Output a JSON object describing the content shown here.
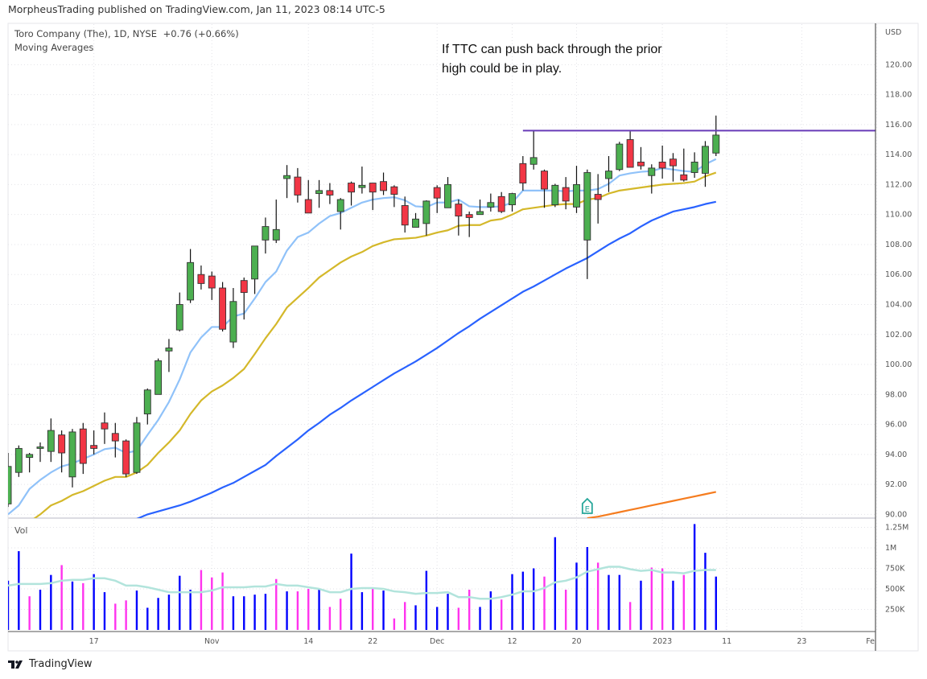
{
  "header": {
    "published": "MorpheusTrading published on TradingView.com, Jan 11, 2023 08:14 UTC-5",
    "symbol_line": "Toro Company (The), 1D, NYSE",
    "change": "+0.76 (+0.66%)",
    "indicator": "Moving Averages",
    "currency": "USD",
    "volume_label": "Vol"
  },
  "annotation": {
    "text_line1": "If TTC can push back through the prior",
    "text_line2": "high could be in play.",
    "horizontal_line_price": 115.6,
    "horizontal_line_from": "2022-12-13",
    "line_color": "#673ab7"
  },
  "earnings_marker": {
    "label": "E",
    "date": "2022-12-21",
    "color": "#26a69a"
  },
  "footer": {
    "brand": "TradingView"
  },
  "colors": {
    "up": "#4caf50",
    "down": "#f23645",
    "vol_up": "#0000ff",
    "vol_down": "#ff33ee",
    "ma_fast": "#90c2f9",
    "ma_mid": "#d4b82a",
    "ma_slow": "#2962ff",
    "ma_long": "#f57c1f",
    "vol_ma": "#b2e4dc"
  },
  "chart_data": {
    "type": "candlestick",
    "title": "",
    "ylim": [
      89.7,
      122.7
    ],
    "y_ticks": [
      "90.00",
      "92.00",
      "94.00",
      "96.00",
      "98.00",
      "100.00",
      "102.00",
      "104.00",
      "106.00",
      "108.00",
      "110.00",
      "112.00",
      "114.00",
      "116.00",
      "118.00",
      "120.00"
    ],
    "x_ticks": [
      {
        "label": "17",
        "date": "2022-10-17"
      },
      {
        "label": "Nov",
        "date": "2022-11-01"
      },
      {
        "label": "14",
        "date": "2022-11-14"
      },
      {
        "label": "22",
        "date": "2022-11-22"
      },
      {
        "label": "Dec",
        "date": "2022-12-01"
      },
      {
        "label": "12",
        "date": "2022-12-12"
      },
      {
        "label": "20",
        "date": "2022-12-20"
      },
      {
        "label": "2023",
        "date": "2023-01-03"
      },
      {
        "label": "11",
        "date": "2023-01-11"
      },
      {
        "label": "23",
        "date": "2023-01-23"
      },
      {
        "label": "Fe",
        "date": "2023-02-01"
      }
    ],
    "grid": true,
    "dates": [
      "2022-10-05",
      "2022-10-06",
      "2022-10-07",
      "2022-10-10",
      "2022-10-11",
      "2022-10-12",
      "2022-10-13",
      "2022-10-14",
      "2022-10-17",
      "2022-10-18",
      "2022-10-19",
      "2022-10-20",
      "2022-10-21",
      "2022-10-24",
      "2022-10-25",
      "2022-10-26",
      "2022-10-27",
      "2022-10-28",
      "2022-10-31",
      "2022-11-01",
      "2022-11-02",
      "2022-11-03",
      "2022-11-04",
      "2022-11-07",
      "2022-11-08",
      "2022-11-09",
      "2022-11-10",
      "2022-11-11",
      "2022-11-14",
      "2022-11-15",
      "2022-11-16",
      "2022-11-17",
      "2022-11-18",
      "2022-11-21",
      "2022-11-22",
      "2022-11-23",
      "2022-11-25",
      "2022-11-28",
      "2022-11-29",
      "2022-11-30",
      "2022-12-01",
      "2022-12-02",
      "2022-12-05",
      "2022-12-06",
      "2022-12-07",
      "2022-12-08",
      "2022-12-09",
      "2022-12-12",
      "2022-12-13",
      "2022-12-14",
      "2022-12-15",
      "2022-12-16",
      "2022-12-19",
      "2022-12-20",
      "2022-12-21",
      "2022-12-22",
      "2022-12-23",
      "2022-12-27",
      "2022-12-28",
      "2022-12-29",
      "2022-12-30",
      "2023-01-03",
      "2023-01-04",
      "2023-01-05",
      "2023-01-06",
      "2023-01-09",
      "2023-01-10"
    ],
    "ohlc": [
      [
        90.7,
        94.1,
        90.5,
        93.2
      ],
      [
        92.8,
        94.6,
        92.5,
        94.4
      ],
      [
        93.8,
        94.1,
        92.8,
        94.0
      ],
      [
        94.4,
        94.8,
        93.5,
        94.5
      ],
      [
        94.2,
        96.4,
        93.5,
        95.6
      ],
      [
        95.3,
        95.6,
        92.8,
        94.1
      ],
      [
        92.5,
        95.7,
        91.8,
        95.5
      ],
      [
        95.7,
        96.1,
        92.7,
        93.4
      ],
      [
        94.6,
        95.6,
        94.0,
        94.4
      ],
      [
        96.1,
        96.8,
        94.7,
        95.7
      ],
      [
        95.4,
        96.1,
        93.8,
        94.9
      ],
      [
        94.9,
        95.0,
        92.5,
        92.7
      ],
      [
        92.8,
        96.5,
        92.7,
        96.1
      ],
      [
        96.7,
        98.4,
        96.0,
        98.3
      ],
      [
        98.0,
        100.4,
        98.0,
        100.25
      ],
      [
        100.9,
        101.7,
        99.5,
        101.1
      ],
      [
        102.3,
        104.8,
        102.2,
        104.0
      ],
      [
        104.3,
        107.7,
        104.1,
        106.8
      ],
      [
        106.0,
        106.6,
        105.0,
        105.4
      ],
      [
        105.9,
        106.2,
        104.3,
        105.1
      ],
      [
        105.1,
        105.5,
        102.2,
        102.35
      ],
      [
        101.5,
        105.1,
        101.1,
        104.2
      ],
      [
        105.6,
        105.8,
        103.0,
        104.8
      ],
      [
        105.7,
        107.9,
        104.7,
        107.9
      ],
      [
        108.3,
        109.8,
        107.4,
        109.2
      ],
      [
        108.3,
        111.0,
        108.1,
        109.0
      ],
      [
        112.4,
        113.3,
        111.1,
        112.6
      ],
      [
        112.5,
        113.1,
        110.8,
        111.3
      ],
      [
        111.0,
        112.3,
        110.1,
        110.1
      ],
      [
        111.4,
        112.3,
        110.45,
        111.6
      ],
      [
        111.6,
        112.1,
        110.7,
        111.3
      ],
      [
        110.2,
        111.1,
        109.0,
        111.0
      ],
      [
        112.1,
        112.2,
        110.6,
        111.5
      ],
      [
        111.8,
        113.2,
        111.4,
        111.95
      ],
      [
        112.1,
        112.1,
        110.3,
        111.5
      ],
      [
        112.2,
        112.8,
        111.3,
        111.6
      ],
      [
        111.85,
        111.95,
        110.5,
        111.35
      ],
      [
        110.6,
        111.2,
        108.8,
        109.3
      ],
      [
        109.15,
        110.1,
        109.15,
        109.7
      ],
      [
        109.4,
        110.95,
        108.6,
        110.9
      ],
      [
        111.8,
        111.95,
        110.1,
        111.1
      ],
      [
        110.45,
        112.5,
        110.45,
        112.0
      ],
      [
        110.7,
        111.0,
        108.6,
        109.9
      ],
      [
        110.0,
        110.2,
        108.5,
        109.8
      ],
      [
        110.0,
        111.0,
        110.0,
        110.2
      ],
      [
        110.5,
        111.4,
        110.2,
        110.8
      ],
      [
        111.2,
        111.5,
        110.1,
        110.2
      ],
      [
        110.65,
        111.45,
        110.2,
        111.4
      ],
      [
        113.4,
        113.9,
        111.6,
        112.1
      ],
      [
        113.35,
        115.6,
        113.0,
        113.8
      ],
      [
        112.9,
        113.0,
        110.45,
        111.7
      ],
      [
        110.65,
        112.05,
        110.5,
        111.95
      ],
      [
        111.8,
        112.5,
        110.35,
        110.9
      ],
      [
        110.5,
        113.25,
        110.1,
        112.0
      ],
      [
        108.3,
        113.0,
        105.7,
        112.8
      ],
      [
        111.35,
        112.7,
        109.4,
        111.0
      ],
      [
        112.4,
        113.9,
        111.5,
        112.9
      ],
      [
        113.0,
        114.85,
        112.9,
        114.7
      ],
      [
        115.0,
        115.55,
        113.15,
        113.15
      ],
      [
        113.5,
        114.5,
        113.0,
        113.25
      ],
      [
        112.6,
        113.35,
        111.4,
        113.1
      ],
      [
        113.5,
        114.6,
        112.4,
        113.1
      ],
      [
        113.7,
        114.1,
        112.2,
        113.25
      ],
      [
        112.65,
        114.4,
        112.2,
        112.3
      ],
      [
        112.8,
        114.15,
        112.45,
        113.5
      ],
      [
        112.75,
        114.9,
        111.85,
        114.55
      ],
      [
        114.1,
        116.6,
        113.9,
        115.3
      ]
    ],
    "ma_fast": [
      90.0,
      90.6,
      91.7,
      92.3,
      92.8,
      93.2,
      93.4,
      93.7,
      94.0,
      94.35,
      94.45,
      94.1,
      94.25,
      95.3,
      96.3,
      97.5,
      99.0,
      100.8,
      101.8,
      102.5,
      102.5,
      103.2,
      103.4,
      104.4,
      105.5,
      106.2,
      107.6,
      108.5,
      108.8,
      109.4,
      109.9,
      110.1,
      110.45,
      110.8,
      111.0,
      111.1,
      111.15,
      110.95,
      110.55,
      110.5,
      110.8,
      110.8,
      111.0,
      110.55,
      110.5,
      110.5,
      110.55,
      110.8,
      111.6,
      111.6,
      111.6,
      111.6,
      111.55,
      111.6,
      111.6,
      111.7,
      112.05,
      112.6,
      112.75,
      112.85,
      112.9,
      113.1,
      113.0,
      112.9,
      112.85,
      113.35,
      113.7
    ],
    "ma_mid": [
      null,
      null,
      89.5,
      90.0,
      90.6,
      90.9,
      91.3,
      91.55,
      91.9,
      92.25,
      92.5,
      92.5,
      92.8,
      93.3,
      94.1,
      94.8,
      95.6,
      96.7,
      97.6,
      98.2,
      98.6,
      99.1,
      99.7,
      100.7,
      101.75,
      102.7,
      103.8,
      104.45,
      105.1,
      105.8,
      106.3,
      106.8,
      107.2,
      107.5,
      107.9,
      108.15,
      108.35,
      108.4,
      108.45,
      108.6,
      108.8,
      108.95,
      109.25,
      109.3,
      109.3,
      109.6,
      109.7,
      110.0,
      110.35,
      110.45,
      110.55,
      110.65,
      110.7,
      110.7,
      111.0,
      111.1,
      111.4,
      111.6,
      111.7,
      111.8,
      111.9,
      112.0,
      112.05,
      112.1,
      112.2,
      112.55,
      112.8
    ],
    "ma_slow": [
      null,
      null,
      null,
      null,
      null,
      null,
      null,
      null,
      null,
      null,
      null,
      null,
      89.7,
      90.0,
      90.2,
      90.4,
      90.6,
      90.85,
      91.15,
      91.45,
      91.8,
      92.1,
      92.5,
      92.9,
      93.3,
      93.9,
      94.45,
      95.0,
      95.6,
      96.1,
      96.65,
      97.1,
      97.6,
      98.05,
      98.5,
      98.95,
      99.4,
      99.8,
      100.2,
      100.65,
      101.1,
      101.6,
      102.1,
      102.55,
      103.05,
      103.5,
      103.95,
      104.4,
      104.85,
      105.2,
      105.6,
      106.0,
      106.4,
      106.75,
      107.1,
      107.55,
      108.0,
      108.4,
      108.75,
      109.2,
      109.6,
      109.9,
      110.2,
      110.35,
      110.5,
      110.7,
      110.85
    ],
    "ma_long": [
      null,
      null,
      null,
      null,
      null,
      null,
      null,
      null,
      null,
      null,
      null,
      null,
      null,
      null,
      null,
      null,
      null,
      null,
      null,
      null,
      null,
      null,
      null,
      null,
      null,
      null,
      null,
      null,
      null,
      null,
      null,
      null,
      null,
      null,
      null,
      null,
      null,
      null,
      null,
      null,
      null,
      null,
      null,
      null,
      null,
      null,
      null,
      null,
      null,
      null,
      null,
      null,
      null,
      null,
      89.75,
      89.85,
      90.0,
      90.15,
      90.3,
      90.45,
      90.6,
      90.75,
      90.9,
      91.05,
      91.2,
      91.35,
      91.5
    ],
    "volume": {
      "unit": "M",
      "vlim": [
        0,
        1.353
      ],
      "ticks": [
        {
          "label": "250K",
          "value": 0.25
        },
        {
          "label": "500K",
          "value": 0.5
        },
        {
          "label": "750K",
          "value": 0.75
        },
        {
          "label": "1M",
          "value": 1.0
        },
        {
          "label": "1.25M",
          "value": 1.25
        }
      ],
      "values": [
        0.6,
        0.96,
        0.41,
        0.49,
        0.67,
        0.79,
        0.59,
        0.57,
        0.68,
        0.46,
        0.32,
        0.36,
        0.48,
        0.27,
        0.39,
        0.43,
        0.66,
        0.49,
        0.73,
        0.64,
        0.7,
        0.41,
        0.41,
        0.43,
        0.44,
        0.62,
        0.47,
        0.47,
        0.5,
        0.5,
        0.28,
        0.38,
        0.93,
        0.46,
        0.5,
        0.48,
        0.14,
        0.34,
        0.3,
        0.72,
        0.28,
        0.44,
        0.27,
        0.49,
        0.28,
        0.47,
        0.37,
        0.68,
        0.71,
        0.75,
        0.65,
        1.13,
        0.49,
        0.82,
        1.01,
        0.82,
        0.67,
        0.67,
        0.34,
        0.6,
        0.76,
        0.75,
        0.6,
        0.67,
        1.29,
        0.94,
        0.65
      ],
      "up": [
        1,
        1,
        0,
        1,
        1,
        0,
        1,
        0,
        1,
        1,
        0,
        0,
        1,
        1,
        1,
        1,
        1,
        1,
        0,
        0,
        0,
        1,
        1,
        1,
        1,
        0,
        1,
        0,
        0,
        1,
        0,
        0,
        1,
        1,
        0,
        1,
        0,
        0,
        1,
        1,
        1,
        1,
        0,
        0,
        1,
        1,
        0,
        1,
        1,
        1,
        0,
        1,
        0,
        1,
        1,
        0,
        1,
        1,
        0,
        1,
        0,
        0,
        1,
        0,
        1,
        1,
        1
      ],
      "ma": [
        0.54,
        0.56,
        0.56,
        0.56,
        0.57,
        0.6,
        0.61,
        0.61,
        0.63,
        0.63,
        0.6,
        0.54,
        0.54,
        0.52,
        0.49,
        0.46,
        0.46,
        0.46,
        0.46,
        0.48,
        0.52,
        0.52,
        0.52,
        0.53,
        0.53,
        0.56,
        0.54,
        0.54,
        0.52,
        0.5,
        0.46,
        0.46,
        0.5,
        0.51,
        0.51,
        0.5,
        0.47,
        0.46,
        0.44,
        0.45,
        0.45,
        0.46,
        0.4,
        0.4,
        0.38,
        0.38,
        0.4,
        0.43,
        0.47,
        0.47,
        0.51,
        0.58,
        0.6,
        0.64,
        0.71,
        0.74,
        0.77,
        0.77,
        0.74,
        0.72,
        0.73,
        0.7,
        0.7,
        0.69,
        0.72,
        0.73,
        0.73
      ]
    }
  }
}
